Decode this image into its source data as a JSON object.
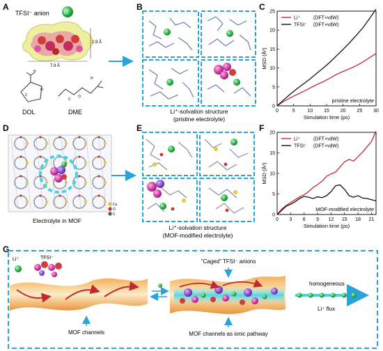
{
  "panel_letters": {
    "A": "A",
    "B": "B",
    "C": "C",
    "D": "D",
    "E": "E",
    "F": "F",
    "G": "G"
  },
  "panel_a": {
    "anion_label": "TFSI⁻ anion",
    "li_symbol": "Li",
    "dim_vertical": "2.9 Å",
    "dim_horizontal": "7.9 Å",
    "dol_label": "DOL",
    "dme_label": "DME",
    "atom_letters": {
      "h": "H",
      "c": "C",
      "o": "O"
    }
  },
  "panel_b": {
    "caption_line1": "Li⁺-solvation structure",
    "caption_line2": "(pristine electrolyte)"
  },
  "panel_d": {
    "caption": "Electrolyte in MOF",
    "legend": [
      {
        "label": "Cu",
        "color": "#d9c24a"
      },
      {
        "label": "O",
        "color": "#c0392b"
      },
      {
        "label": "C",
        "color": "#555555"
      }
    ]
  },
  "panel_e": {
    "caption_line1": "Li⁺-solvation structure",
    "caption_line2": "(MOF-modified electrolyte)"
  },
  "panel_g": {
    "li_label": "Li⁺",
    "tfsi_label": "TFSI⁻",
    "caged_label": "\"Caged\" TFSI⁻ anions",
    "mof_channels_label": "MOF channels",
    "ionic_pathway_label": "MOF channels as ionic pathway",
    "homogeneous_label": "homogeneous",
    "flux_label": "Li⁺ flux"
  },
  "colors": {
    "li_red": "#c0292d",
    "tfsi_black": "#111111",
    "dash_blue": "#2aa3d8",
    "li_green": "#2fb34a"
  },
  "chart_data": [
    {
      "type": "line",
      "panel": "C",
      "xlabel": "Simulation time (ps)",
      "ylabel": "MSD (Å²)",
      "xlim": [
        0,
        30
      ],
      "ylim": [
        0,
        25
      ],
      "xticks": [
        0,
        5,
        10,
        15,
        20,
        25,
        30
      ],
      "yticks": [
        0,
        5,
        10,
        15,
        20,
        25
      ],
      "annotation": "pristine electrolyte",
      "legend_position": "top-left",
      "series": [
        {
          "name": "Li⁺",
          "method": "(DFT+vdW)",
          "color": "#c0292d",
          "x": [
            0,
            2,
            4,
            6,
            8,
            10,
            12,
            14,
            16,
            18,
            20,
            22,
            24,
            26,
            28,
            30
          ],
          "y": [
            0,
            1.2,
            2.1,
            3.0,
            3.8,
            4.7,
            5.6,
            6.4,
            7.3,
            8.3,
            9.1,
            9.8,
            10.6,
            11.6,
            12.7,
            13.8
          ]
        },
        {
          "name": "TFSI⁻",
          "method": "(DFT+vdW)",
          "color": "#111111",
          "x": [
            0,
            2,
            4,
            6,
            8,
            10,
            12,
            14,
            16,
            18,
            20,
            22,
            24,
            26,
            28,
            30
          ],
          "y": [
            0,
            1.6,
            3.1,
            4.5,
            5.8,
            7.1,
            8.6,
            10.0,
            11.5,
            13.2,
            14.9,
            16.7,
            18.6,
            20.6,
            23.0,
            25.5
          ]
        }
      ]
    },
    {
      "type": "line",
      "panel": "F",
      "xlabel": "Simulation time (ps)",
      "ylabel": "MSD (Å²)",
      "xlim": [
        0,
        22
      ],
      "ylim": [
        0,
        20
      ],
      "xticks": [
        0,
        3,
        6,
        9,
        12,
        15,
        18,
        21
      ],
      "yticks": [
        0,
        5,
        10,
        15,
        20
      ],
      "annotation": "MOF-modified electrolyte",
      "legend_position": "top-left",
      "series": [
        {
          "name": "Li⁺",
          "method": "(DFT+vdW)",
          "color": "#c0292d",
          "x": [
            0,
            1,
            2,
            3,
            4,
            5,
            6,
            7,
            8,
            9,
            10,
            11,
            12,
            13,
            14,
            15,
            16,
            17,
            18,
            19,
            20,
            21,
            22
          ],
          "y": [
            0,
            1.3,
            2.2,
            2.9,
            3.6,
            4.3,
            4.8,
            5.6,
            6.6,
            7.3,
            8.1,
            9.3,
            9.9,
            10.3,
            11.6,
            12.8,
            13.4,
            13.0,
            14.1,
            15.2,
            16.5,
            17.8,
            20.3
          ]
        },
        {
          "name": "TFSI⁻",
          "method": "(DFT+vdW)",
          "color": "#111111",
          "x": [
            0,
            1,
            2,
            3,
            4,
            5,
            6,
            7,
            8,
            9,
            10,
            11,
            12,
            13,
            14,
            15,
            16,
            17,
            18,
            19,
            20,
            21,
            22
          ],
          "y": [
            0,
            1.0,
            2.0,
            2.5,
            3.1,
            3.9,
            4.4,
            4.2,
            3.9,
            4.3,
            4.1,
            4.6,
            5.6,
            7.0,
            7.2,
            6.1,
            4.6,
            4.2,
            4.6,
            4.0,
            3.9,
            3.6,
            3.3
          ]
        }
      ]
    }
  ]
}
